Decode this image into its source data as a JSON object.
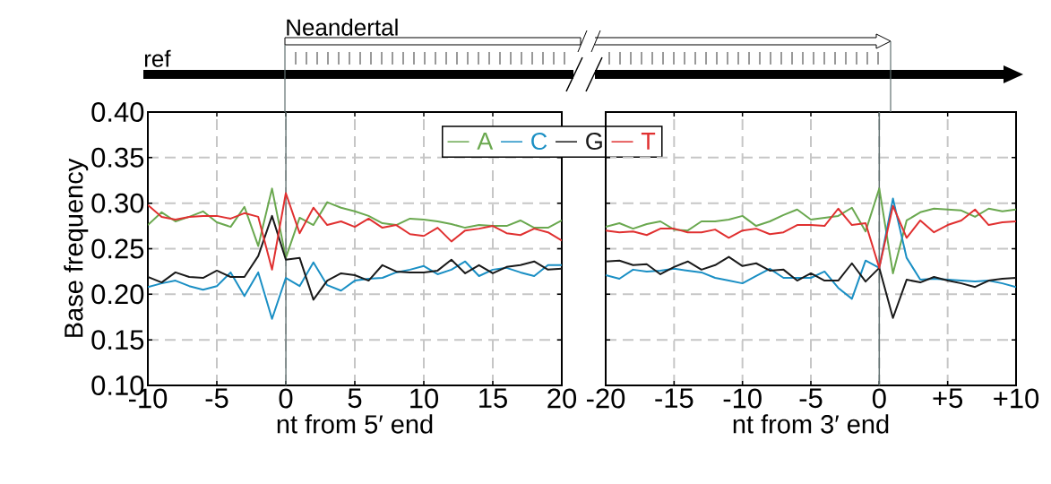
{
  "chart_data": [
    {
      "type": "line",
      "xlabel": "nt from 5′ end",
      "ylabel": "Base frequency",
      "x": [
        -10,
        -9,
        -8,
        -7,
        -6,
        -5,
        -4,
        -3,
        -2,
        -1,
        0,
        1,
        2,
        3,
        4,
        5,
        6,
        7,
        8,
        9,
        10,
        11,
        12,
        13,
        14,
        15,
        16,
        17,
        18,
        19,
        20
      ],
      "series": [
        {
          "name": "A",
          "color": "#6aa84f",
          "values": [
            0.276,
            0.29,
            0.28,
            0.285,
            0.291,
            0.279,
            0.274,
            0.296,
            0.253,
            0.316,
            0.24,
            0.284,
            0.276,
            0.301,
            0.295,
            0.291,
            0.286,
            0.278,
            0.276,
            0.283,
            0.282,
            0.28,
            0.277,
            0.273,
            0.276,
            0.275,
            0.275,
            0.281,
            0.273,
            0.273,
            0.281
          ]
        },
        {
          "name": "C",
          "color": "#1a8fc4",
          "values": [
            0.208,
            0.212,
            0.215,
            0.209,
            0.205,
            0.209,
            0.224,
            0.198,
            0.224,
            0.173,
            0.218,
            0.209,
            0.235,
            0.21,
            0.204,
            0.215,
            0.217,
            0.218,
            0.224,
            0.227,
            0.231,
            0.222,
            0.227,
            0.236,
            0.22,
            0.227,
            0.229,
            0.224,
            0.22,
            0.232,
            0.232
          ]
        },
        {
          "name": "G",
          "color": "#1a1a1a",
          "values": [
            0.219,
            0.213,
            0.224,
            0.219,
            0.218,
            0.226,
            0.219,
            0.219,
            0.242,
            0.286,
            0.238,
            0.24,
            0.194,
            0.215,
            0.223,
            0.221,
            0.215,
            0.232,
            0.225,
            0.224,
            0.224,
            0.226,
            0.238,
            0.223,
            0.232,
            0.223,
            0.23,
            0.232,
            0.236,
            0.227,
            0.228
          ]
        },
        {
          "name": "T",
          "color": "#e03030",
          "values": [
            0.298,
            0.285,
            0.282,
            0.285,
            0.286,
            0.286,
            0.283,
            0.289,
            0.285,
            0.227,
            0.311,
            0.267,
            0.295,
            0.276,
            0.28,
            0.274,
            0.283,
            0.273,
            0.276,
            0.266,
            0.264,
            0.273,
            0.258,
            0.27,
            0.272,
            0.275,
            0.267,
            0.265,
            0.272,
            0.268,
            0.259
          ]
        }
      ],
      "xlim": [
        -10,
        20
      ],
      "xticks": [
        -10,
        -5,
        0,
        5,
        10,
        15,
        20
      ],
      "ylim": [
        0.1,
        0.4
      ],
      "yticks": [
        {
          "value": 0.1,
          "label": "0.10"
        },
        {
          "value": 0.15,
          "label": "0.15"
        },
        {
          "value": 0.2,
          "label": "0.20"
        },
        {
          "value": 0.25,
          "label": "0.25"
        },
        {
          "value": 0.3,
          "label": "0.30"
        },
        {
          "value": 0.35,
          "label": "0.35"
        },
        {
          "value": 0.4,
          "label": "0.40"
        }
      ],
      "grid": true,
      "legend": "top right",
      "ref_lines": [
        {
          "axis": "x",
          "value": 0,
          "color": "#607070"
        }
      ],
      "annotations": [
        "ref",
        "Neandertal"
      ]
    },
    {
      "type": "line",
      "xlabel": "nt from 3′ end",
      "x": [
        -20,
        -19,
        -18,
        -17,
        -16,
        -15,
        -14,
        -13,
        -12,
        -11,
        -10,
        -9,
        -8,
        -7,
        -6,
        -5,
        -4,
        -3,
        -2,
        -1,
        0,
        1,
        2,
        3,
        4,
        5,
        6,
        7,
        8,
        9,
        10
      ],
      "series": [
        {
          "color": "#6aa84f",
          "values": [
            0.274,
            0.278,
            0.272,
            0.277,
            0.28,
            0.271,
            0.27,
            0.28,
            0.28,
            0.282,
            0.286,
            0.275,
            0.28,
            0.287,
            0.293,
            0.282,
            0.284,
            0.286,
            0.295,
            0.269,
            0.316,
            0.223,
            0.281,
            0.29,
            0.294,
            0.293,
            0.292,
            0.285,
            0.294,
            0.291,
            0.293
          ]
        },
        {
          "color": "#1a8fc4",
          "values": [
            0.221,
            0.217,
            0.227,
            0.225,
            0.226,
            0.228,
            0.226,
            0.224,
            0.218,
            0.215,
            0.212,
            0.22,
            0.228,
            0.218,
            0.218,
            0.218,
            0.225,
            0.207,
            0.195,
            0.237,
            0.229,
            0.305,
            0.24,
            0.216,
            0.217,
            0.216,
            0.215,
            0.214,
            0.215,
            0.212,
            0.208
          ]
        },
        {
          "color": "#1a1a1a",
          "values": [
            0.236,
            0.237,
            0.232,
            0.233,
            0.222,
            0.23,
            0.236,
            0.227,
            0.232,
            0.241,
            0.231,
            0.234,
            0.226,
            0.227,
            0.215,
            0.223,
            0.215,
            0.215,
            0.234,
            0.214,
            0.229,
            0.174,
            0.216,
            0.213,
            0.219,
            0.215,
            0.212,
            0.208,
            0.215,
            0.217,
            0.218
          ]
        },
        {
          "color": "#e03030",
          "values": [
            0.27,
            0.268,
            0.269,
            0.265,
            0.272,
            0.272,
            0.268,
            0.268,
            0.271,
            0.262,
            0.27,
            0.272,
            0.266,
            0.268,
            0.276,
            0.276,
            0.275,
            0.294,
            0.276,
            0.278,
            0.229,
            0.297,
            0.262,
            0.281,
            0.268,
            0.276,
            0.281,
            0.293,
            0.276,
            0.279,
            0.28
          ]
        }
      ],
      "xlim": [
        -20,
        10
      ],
      "xticks": [
        -20,
        -15,
        -10,
        -5,
        0,
        {
          "value": 5,
          "label": "+5"
        },
        {
          "value": 10,
          "label": "+10"
        }
      ],
      "ylim": [
        0.1,
        0.4
      ],
      "yticks": [
        0.1,
        0.15,
        0.2,
        0.25,
        0.3,
        0.35,
        0.4
      ],
      "tick_labels": "x",
      "grid": true,
      "ref_lines": [
        {
          "axis": "x",
          "value": 0,
          "color": "#607070"
        }
      ]
    }
  ]
}
